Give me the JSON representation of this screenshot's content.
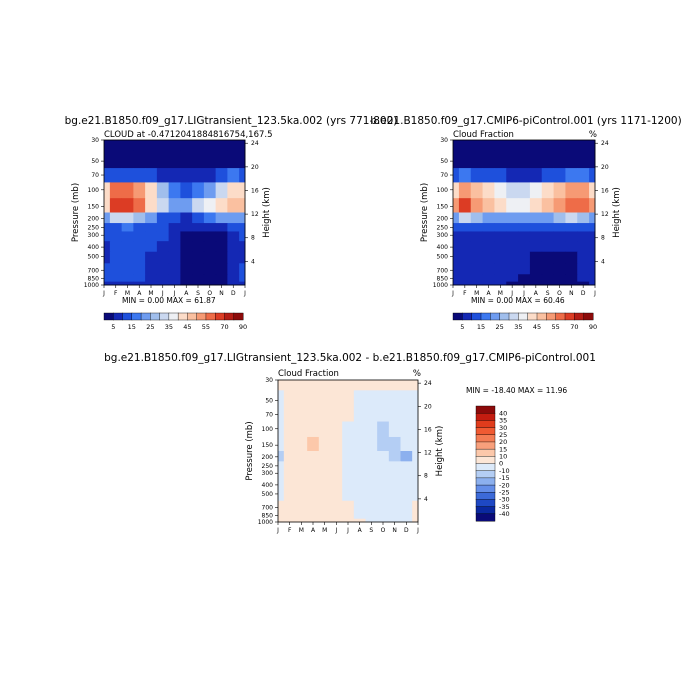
{
  "panels": [
    {
      "title": "bg.e21.B1850.f09_g17.LIGtransient_123.5ka.002 (yrs 771-800)",
      "subtitle": "CLOUD at -0.4712041884816754,167.5",
      "unit_label": "",
      "stats": "MIN =   0.00 MAX =  61.87"
    },
    {
      "title": "b.e21.B1850.f09_g17.CMIP6-piControl.001 (yrs 1171-1200)",
      "subtitle": "Cloud Fraction",
      "unit_label": "%",
      "stats": "MIN =   0.00 MAX =  60.46"
    },
    {
      "title": "bg.e21.B1850.f09_g17.LIGtransient_123.5ka.002 - b.e21.B1850.f09_g17.CMIP6-piControl.001",
      "subtitle": "Cloud Fraction",
      "unit_label": "%",
      "stats": "MIN = -18.40 MAX =  11.96"
    }
  ],
  "axes": {
    "ylabel_left": "Pressure (mb)",
    "ylabel_right": "Height (km)",
    "pressure_ticks": [
      "30",
      "50",
      "70",
      "100",
      "150",
      "200",
      "250",
      "300",
      "400",
      "500",
      "700",
      "850",
      "1000"
    ],
    "height_ticks": [
      "24",
      "20",
      "16",
      "12",
      "8",
      "4"
    ],
    "month_ticks": [
      "J",
      "F",
      "M",
      "A",
      "M",
      "J",
      "J",
      "A",
      "S",
      "O",
      "N",
      "D",
      "J"
    ]
  },
  "colorbar_abs": {
    "labels": [
      "5",
      "15",
      "25",
      "35",
      "45",
      "55",
      "70",
      "90"
    ],
    "colors": [
      "#0a0a78",
      "#1428b4",
      "#1e50dc",
      "#3c78f0",
      "#6e9cf0",
      "#a0beec",
      "#cad8f0",
      "#eef0f4",
      "#fcdcc8",
      "#fac0a0",
      "#f69a74",
      "#ee6c48",
      "#dc3c24",
      "#b41c14",
      "#8c0a0a"
    ]
  },
  "colorbar_diff": {
    "labels": [
      "40",
      "35",
      "30",
      "25",
      "20",
      "15",
      "10",
      "0",
      "-10",
      "-15",
      "-20",
      "-25",
      "-30",
      "-35",
      "-40"
    ],
    "colors": [
      "#8c0a0a",
      "#c41c10",
      "#e03c1c",
      "#f05a32",
      "#f47c54",
      "#f8a07c",
      "#fcc8aa",
      "#fce6d6",
      "#dceafa",
      "#b4cef4",
      "#8cb0ee",
      "#648ee8",
      "#3c6ad8",
      "#1e48c4",
      "#0a28a0",
      "#0a0a78"
    ]
  },
  "chart_data": [
    {
      "type": "heatmap",
      "title": "bg.e21.B1850.f09_g17.LIGtransient_123.5ka.002 (yrs 771-800)",
      "subtitle": "CLOUD at -0.4712041884816754,167.5",
      "xlabel": "",
      "ylabel": "Pressure (mb)",
      "ylabel_right": "Height (km)",
      "x": [
        "J",
        "F",
        "M",
        "A",
        "M",
        "J",
        "J",
        "A",
        "S",
        "O",
        "N",
        "D",
        "J"
      ],
      "y_pressure": [
        30,
        50,
        70,
        100,
        150,
        200,
        250,
        300,
        400,
        500,
        700,
        850,
        1000
      ],
      "y_scale": "log-pressure",
      "min": 0.0,
      "max": 61.87,
      "values": [
        [
          2,
          2,
          2,
          2,
          2,
          2,
          2,
          2,
          2,
          2,
          2,
          2,
          2
        ],
        [
          4,
          4,
          4,
          4,
          3,
          3,
          3,
          3,
          3,
          3,
          3,
          4,
          4
        ],
        [
          12,
          14,
          14,
          12,
          10,
          8,
          6,
          5,
          6,
          8,
          12,
          16,
          14
        ],
        [
          40,
          55,
          58,
          52,
          42,
          28,
          18,
          14,
          18,
          24,
          32,
          42,
          44
        ],
        [
          44,
          60,
          61,
          56,
          44,
          30,
          20,
          22,
          30,
          36,
          40,
          46,
          46
        ],
        [
          20,
          30,
          32,
          26,
          20,
          14,
          10,
          8,
          12,
          16,
          20,
          22,
          20
        ],
        [
          10,
          14,
          16,
          14,
          12,
          10,
          7,
          5,
          5,
          6,
          8,
          10,
          10
        ],
        [
          10,
          12,
          14,
          14,
          12,
          10,
          7,
          4,
          3,
          3,
          4,
          8,
          10
        ],
        [
          8,
          10,
          12,
          12,
          10,
          8,
          6,
          3,
          2,
          2,
          3,
          6,
          8
        ],
        [
          8,
          10,
          10,
          10,
          8,
          7,
          5,
          3,
          2,
          2,
          3,
          5,
          8
        ],
        [
          10,
          10,
          10,
          10,
          9,
          8,
          6,
          4,
          3,
          3,
          3,
          6,
          10
        ],
        [
          10,
          10,
          10,
          10,
          9,
          8,
          6,
          4,
          3,
          3,
          3,
          6,
          10
        ],
        [
          8,
          8,
          8,
          8,
          7,
          6,
          5,
          3,
          2,
          2,
          2,
          5,
          8
        ]
      ]
    },
    {
      "type": "heatmap",
      "title": "b.e21.B1850.f09_g17.CMIP6-piControl.001 (yrs 1171-1200)",
      "subtitle": "Cloud Fraction",
      "xlabel": "",
      "ylabel": "Pressure (mb)",
      "ylabel_right": "Height (km)",
      "x": [
        "J",
        "F",
        "M",
        "A",
        "M",
        "J",
        "J",
        "A",
        "S",
        "O",
        "N",
        "D",
        "J"
      ],
      "y_pressure": [
        30,
        50,
        70,
        100,
        150,
        200,
        250,
        300,
        400,
        500,
        700,
        850,
        1000
      ],
      "y_scale": "log-pressure",
      "min": 0.0,
      "max": 60.46,
      "values": [
        [
          2,
          2,
          2,
          2,
          2,
          2,
          2,
          2,
          2,
          2,
          2,
          2,
          2
        ],
        [
          4,
          4,
          4,
          4,
          4,
          3,
          3,
          3,
          3,
          3,
          4,
          4,
          4
        ],
        [
          14,
          16,
          14,
          12,
          10,
          8,
          8,
          8,
          10,
          12,
          16,
          18,
          14
        ],
        [
          42,
          50,
          46,
          40,
          36,
          34,
          34,
          36,
          40,
          46,
          52,
          50,
          44
        ],
        [
          50,
          60,
          54,
          46,
          40,
          38,
          38,
          40,
          46,
          54,
          58,
          58,
          50
        ],
        [
          24,
          30,
          26,
          22,
          20,
          20,
          20,
          20,
          22,
          26,
          30,
          28,
          24
        ],
        [
          10,
          12,
          10,
          10,
          10,
          10,
          10,
          10,
          10,
          10,
          10,
          10,
          10
        ],
        [
          8,
          9,
          9,
          9,
          9,
          9,
          8,
          8,
          8,
          8,
          8,
          8,
          8
        ],
        [
          7,
          8,
          8,
          8,
          8,
          8,
          7,
          6,
          6,
          6,
          7,
          7,
          7
        ],
        [
          6,
          7,
          8,
          8,
          8,
          7,
          6,
          4,
          3,
          3,
          4,
          6,
          6
        ],
        [
          6,
          6,
          7,
          7,
          7,
          6,
          5,
          3,
          2,
          2,
          3,
          5,
          6
        ],
        [
          6,
          6,
          6,
          6,
          6,
          5,
          4,
          3,
          2,
          2,
          3,
          5,
          6
        ],
        [
          5,
          5,
          5,
          5,
          5,
          4,
          3,
          2,
          2,
          2,
          2,
          4,
          5
        ]
      ]
    },
    {
      "type": "heatmap",
      "title": "bg.e21.B1850.f09_g17.LIGtransient_123.5ka.002 - b.e21.B1850.f09_g17.CMIP6-piControl.001",
      "subtitle": "Cloud Fraction",
      "xlabel": "",
      "ylabel": "Pressure (mb)",
      "ylabel_right": "Height (km)",
      "x": [
        "J",
        "F",
        "M",
        "A",
        "M",
        "J",
        "J",
        "A",
        "S",
        "O",
        "N",
        "D",
        "J"
      ],
      "y_pressure": [
        30,
        50,
        70,
        100,
        150,
        200,
        250,
        300,
        400,
        500,
        700,
        850,
        1000
      ],
      "y_scale": "log-pressure",
      "min": -18.4,
      "max": 11.96,
      "values": [
        [
          1,
          1,
          1,
          1,
          1,
          1,
          1,
          1,
          1,
          1,
          1,
          1,
          1
        ],
        [
          -2,
          1,
          1,
          1,
          1,
          1,
          1,
          -2,
          -2,
          -2,
          -2,
          -2,
          -2
        ],
        [
          -2,
          2,
          2,
          2,
          2,
          1,
          1,
          -2,
          -2,
          -4,
          -6,
          -4,
          -2
        ],
        [
          -3,
          3,
          4,
          9,
          4,
          1,
          -3,
          -6,
          -10,
          -14,
          -10,
          -6,
          -3
        ],
        [
          -8,
          2,
          4,
          12,
          4,
          1,
          -3,
          -8,
          -10,
          -12,
          -14,
          -10,
          -6
        ],
        [
          -12,
          2,
          4,
          4,
          2,
          1,
          -2,
          -4,
          -6,
          -10,
          -12,
          -16,
          -10
        ],
        [
          -6,
          2,
          4,
          4,
          3,
          1,
          -1,
          -2,
          -3,
          -4,
          -6,
          -8,
          -6
        ],
        [
          -4,
          3,
          5,
          5,
          3,
          1,
          -1,
          -2,
          -2,
          -3,
          -4,
          -6,
          -4
        ],
        [
          -3,
          2,
          4,
          4,
          2,
          1,
          -1,
          -2,
          -3,
          -4,
          -5,
          -8,
          -4
        ],
        [
          -2,
          2,
          3,
          3,
          2,
          1,
          -1,
          -2,
          -4,
          -6,
          -8,
          -8,
          -4
        ],
        [
          2,
          3,
          3,
          3,
          2,
          2,
          1,
          -1,
          -3,
          -4,
          -5,
          -4,
          2
        ],
        [
          2,
          3,
          3,
          3,
          2,
          2,
          1,
          -1,
          -2,
          -3,
          -4,
          -3,
          2
        ],
        [
          2,
          2,
          2,
          2,
          2,
          2,
          1,
          1,
          -1,
          -2,
          -2,
          -2,
          2
        ]
      ]
    }
  ]
}
